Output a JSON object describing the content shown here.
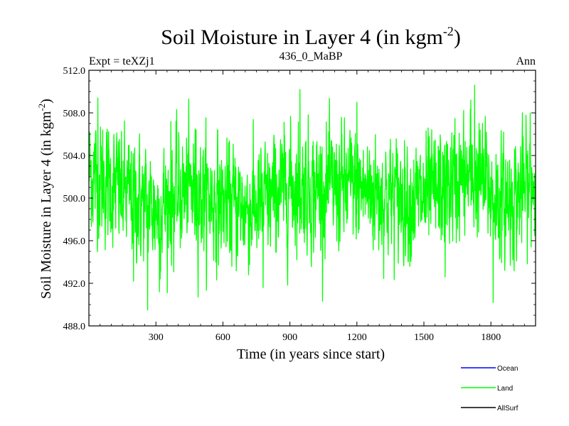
{
  "chart_data": {
    "type": "line",
    "title": "Soil Moisture in Layer 4 (in kgm",
    "title_sup": "-2",
    "title_suffix": ")",
    "subtitle_left": "Expt = teXZj1",
    "subtitle_center": "436_0_MaBP",
    "subtitle_right": "Ann",
    "xlabel": "Time (in years since start)",
    "ylabel": "Soil Moisture in Layer 4 (in kgm",
    "ylabel_sup": "-2",
    "ylabel_suffix": ")",
    "xlim": [
      0,
      2000
    ],
    "ylim": [
      488.0,
      512.0
    ],
    "x_ticks": [
      300,
      600,
      900,
      1200,
      1500,
      1800
    ],
    "x_tick_labels": [
      "300",
      "600",
      "900",
      "1200",
      "1500",
      "1800"
    ],
    "y_ticks": [
      488.0,
      492.0,
      496.0,
      500.0,
      504.0,
      508.0,
      512.0
    ],
    "y_tick_labels": [
      "488.0",
      "492.0",
      "496.0",
      "500.0",
      "504.0",
      "508.0",
      "512.0"
    ],
    "series": [
      {
        "name": "Land",
        "color": "#00ff00",
        "x_start": 1,
        "x_step": 1,
        "count": 2000,
        "mean": 500.2,
        "amplitude": 2.6,
        "seed": 12345,
        "trend_knots": [
          [
            0,
            502.4
          ],
          [
            150,
            500.5
          ],
          [
            300,
            499.0
          ],
          [
            450,
            500.8
          ],
          [
            600,
            499.6
          ],
          [
            750,
            499.0
          ],
          [
            900,
            501.2
          ],
          [
            1050,
            500.8
          ],
          [
            1200,
            501.0
          ],
          [
            1350,
            500.2
          ],
          [
            1500,
            499.8
          ],
          [
            1650,
            501.6
          ],
          [
            1750,
            501.8
          ],
          [
            1850,
            499.4
          ],
          [
            2000,
            501.5
          ]
        ],
        "extremes": [
          [
            3,
            506.2
          ],
          [
            40,
            509.4
          ],
          [
            200,
            492.2
          ],
          [
            263,
            489.5
          ],
          [
            316,
            491.2
          ],
          [
            367,
            507.2
          ],
          [
            480,
            506.4
          ],
          [
            780,
            491.6
          ],
          [
            945,
            510.2
          ],
          [
            1200,
            509.0
          ],
          [
            1595,
            492.6
          ],
          [
            1710,
            509.2
          ],
          [
            1727,
            510.6
          ],
          [
            1810,
            490.2
          ],
          [
            1976,
            508.0
          ]
        ]
      }
    ],
    "legend": [
      {
        "label": "Ocean",
        "color": "#0000ff"
      },
      {
        "label": "Land",
        "color": "#00ff00"
      },
      {
        "label": "AllSurf",
        "color": "#000000"
      }
    ]
  }
}
